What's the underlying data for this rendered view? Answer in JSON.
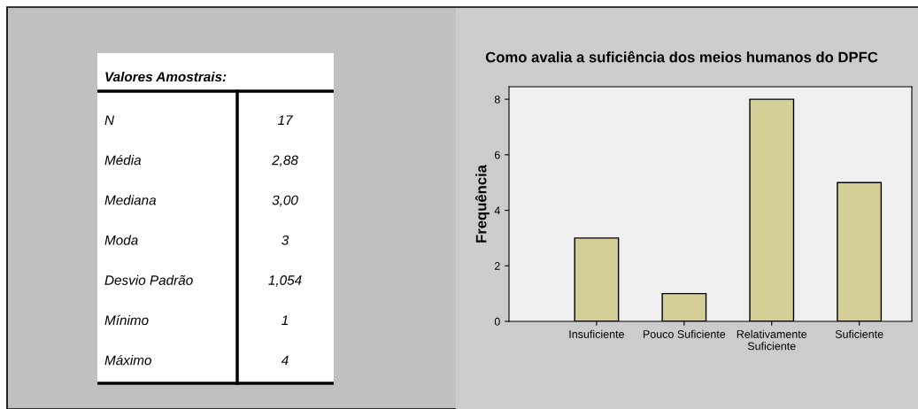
{
  "chart_data": [
    {
      "type": "other",
      "title": "Valores Amostrais:",
      "annotations": [
        "N",
        "17",
        "Média",
        "2,88",
        "Mediana",
        "3,00",
        "Moda",
        "3",
        "Desvio Padrão",
        "1,054",
        "Mínimo",
        "1",
        "Máximo",
        "4"
      ]
    },
    {
      "type": "bar",
      "title": "Como avalia a suficiência dos meios humanos do DPFC",
      "ylabel": "Frequência",
      "categories": [
        "Insuficiente",
        "Pouco Suficiente",
        "Relativamente\nSuficiente",
        "Suficiente"
      ],
      "values": [
        3,
        1,
        8,
        5
      ],
      "color": "#d3cf97",
      "ylim": [
        0,
        8.45
      ],
      "yticks": [
        0,
        2,
        4,
        6,
        8
      ],
      "grid": false,
      "legend": false
    }
  ]
}
